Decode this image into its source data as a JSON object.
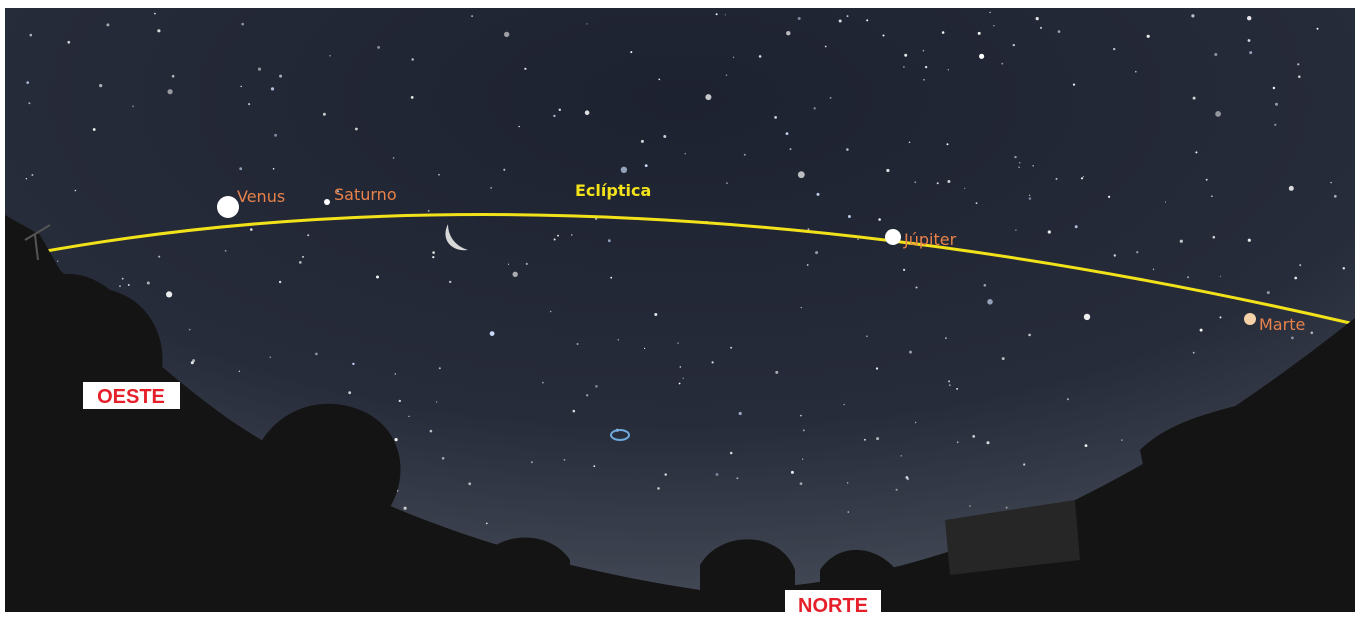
{
  "labels": {
    "venus": "Venus",
    "saturn": "Saturno",
    "ecliptic": "Eclíptica",
    "jupiter": "Júpiter",
    "mars": "Marte",
    "west": "OESTE",
    "north": "NORTE"
  }
}
